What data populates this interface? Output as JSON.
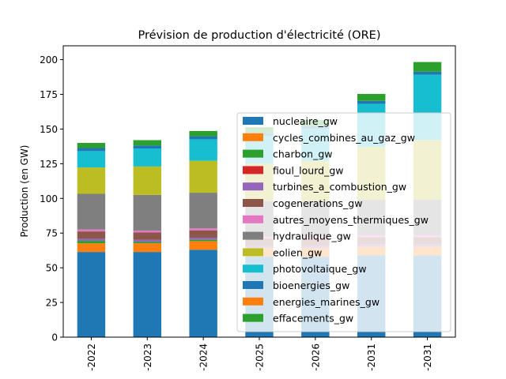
{
  "chart_data": {
    "type": "bar",
    "stacked": true,
    "title": "Prévision de production d'électricité (ORE)",
    "xlabel": "",
    "ylabel": "Production (en GW)",
    "ylim": [
      0,
      210
    ],
    "yticks": [
      0,
      25,
      50,
      75,
      100,
      125,
      150,
      175,
      200
    ],
    "categories": [
      "-2022",
      "-2023",
      "-2024",
      "-2025",
      "-2026",
      "-2031",
      "-2031"
    ],
    "legend_position": "right",
    "grid": false,
    "series": [
      {
        "name": "nucleaire_gw",
        "color": "#1f77b4",
        "values": [
          61.4,
          61.4,
          63.0,
          58.0,
          58.0,
          59.0,
          59.0
        ]
      },
      {
        "name": "cycles_combines_au_gaz_gw",
        "color": "#ff7f0e",
        "values": [
          6.2,
          6.2,
          6.2,
          6.2,
          6.2,
          6.2,
          6.2
        ]
      },
      {
        "name": "charbon_gw",
        "color": "#2ca02c",
        "values": [
          1.8,
          1.0,
          1.0,
          0.0,
          0.0,
          0.0,
          0.0
        ]
      },
      {
        "name": "fioul_lourd_gw",
        "color": "#d62728",
        "values": [
          0.0,
          0.0,
          0.0,
          0.0,
          0.0,
          0.0,
          0.0
        ]
      },
      {
        "name": "turbines_a_combustion_gw",
        "color": "#9467bd",
        "values": [
          1.5,
          1.5,
          1.5,
          1.5,
          1.5,
          1.5,
          1.5
        ]
      },
      {
        "name": "cogenerations_gw",
        "color": "#8c564b",
        "values": [
          5.3,
          5.3,
          5.3,
          5.3,
          5.3,
          5.3,
          5.3
        ]
      },
      {
        "name": "autres_moyens_thermiques_gw",
        "color": "#e377c2",
        "values": [
          1.4,
          1.4,
          1.4,
          1.4,
          1.4,
          1.4,
          1.4
        ]
      },
      {
        "name": "hydraulique_gw",
        "color": "#7f7f7f",
        "values": [
          25.7,
          25.7,
          25.7,
          25.7,
          25.7,
          25.7,
          25.7
        ]
      },
      {
        "name": "eolien_gw",
        "color": "#bcbd22",
        "values": [
          19.0,
          20.5,
          23.0,
          27.0,
          29.0,
          38.0,
          43.0
        ]
      },
      {
        "name": "photovoltaique_gw",
        "color": "#17becf",
        "values": [
          11.8,
          13.0,
          15.5,
          20.0,
          23.0,
          31.0,
          47.0
        ]
      },
      {
        "name": "bioenergies_gw",
        "color": "#1f77b4",
        "values": [
          2.2,
          2.2,
          2.2,
          2.2,
          2.2,
          2.2,
          2.2
        ]
      },
      {
        "name": "energies_marines_gw",
        "color": "#ff7f0e",
        "values": [
          0.0,
          0.0,
          0.0,
          0.0,
          0.0,
          0.0,
          0.0
        ]
      },
      {
        "name": "effacements_gw",
        "color": "#2ca02c",
        "values": [
          3.7,
          3.8,
          3.8,
          4.0,
          4.2,
          5.0,
          7.0
        ]
      }
    ]
  }
}
